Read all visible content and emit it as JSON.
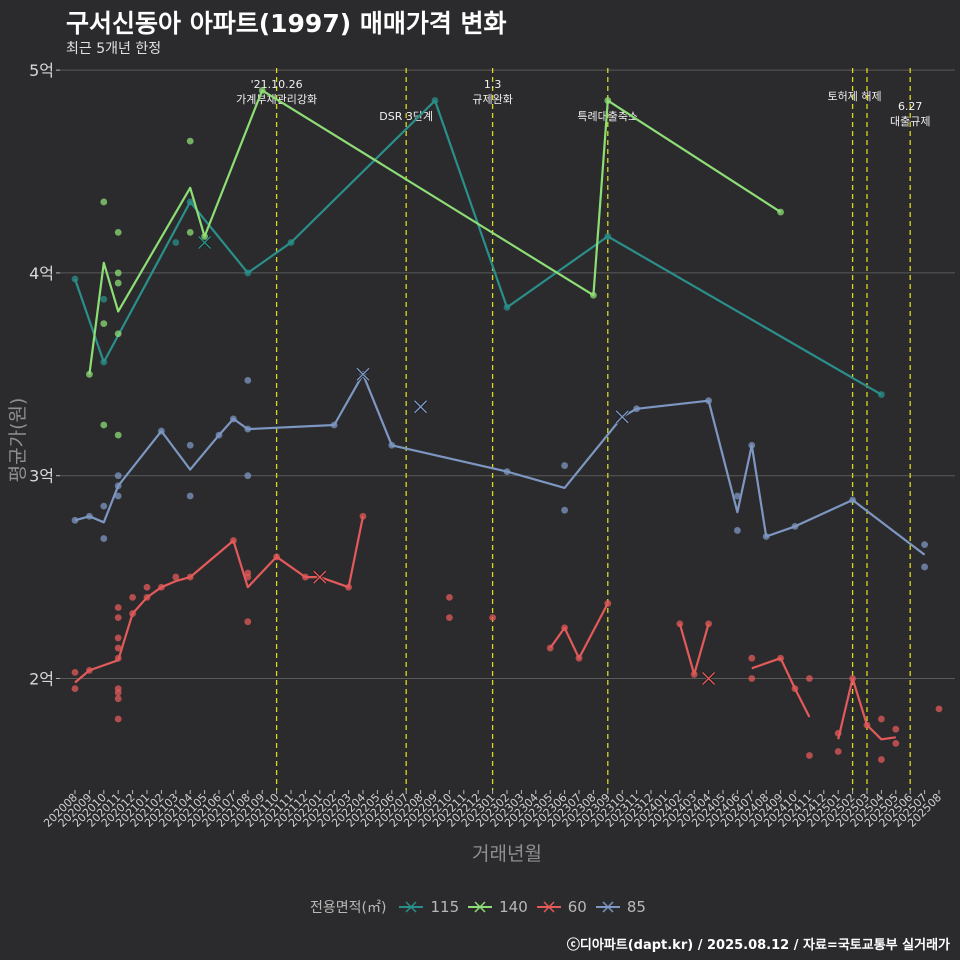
{
  "title": "구서신동아 아파트(1997) 매매가격 변화",
  "subtitle": "최근 5개년 한정",
  "caption": "ⓒ디아파트(dapt.kr) / 2025.08.12 / 자료=국토교통부 실거래가",
  "legend_title": "전용면적(㎡)",
  "colors": {
    "115": "#2a8f8a",
    "140": "#8ede76",
    "60": "#e35a5a",
    "85": "#7d97c2",
    "vline": "#d8d820",
    "grid": "#5a5a5a"
  },
  "chart_data": {
    "type": "line",
    "xlabel": "거래년월",
    "ylabel": "평균가(원)",
    "ylim": [
      1.45,
      5.05
    ],
    "yticks": [
      {
        "v": 2,
        "label": "2억"
      },
      {
        "v": 3,
        "label": "3억"
      },
      {
        "v": 4,
        "label": "4억"
      },
      {
        "v": 5,
        "label": "5억"
      }
    ],
    "x": [
      "202008",
      "202009",
      "202010",
      "202011",
      "202012",
      "202101",
      "202102",
      "202103",
      "202104",
      "202105",
      "202106",
      "202107",
      "202108",
      "202109",
      "202110",
      "202111",
      "202112",
      "202201",
      "202202",
      "202203",
      "202204",
      "202205",
      "202206",
      "202207",
      "202208",
      "202209",
      "202210",
      "202211",
      "202212",
      "202301",
      "202302",
      "202303",
      "202304",
      "202305",
      "202306",
      "202307",
      "202308",
      "202309",
      "202310",
      "202311",
      "202312",
      "202401",
      "202402",
      "202403",
      "202404",
      "202405",
      "202406",
      "202407",
      "202408",
      "202409",
      "202410",
      "202411",
      "202412",
      "202501",
      "202502",
      "202503",
      "202504",
      "202505",
      "202506",
      "202507",
      "202508"
    ],
    "annotations": [
      {
        "x": "202110",
        "label": "'21.10.26\n가계부채관리강화"
      },
      {
        "x": "202207",
        "label": "DSR 3단계"
      },
      {
        "x": "202301",
        "label": "1.3\n규제완화"
      },
      {
        "x": "202309",
        "label": "특례대출축소"
      },
      {
        "x": "202502",
        "label": "토허제 해제"
      },
      {
        "x": "202503",
        "label": ""
      },
      {
        "x": "202506",
        "label": "6.27\n대출규제"
      }
    ],
    "series": [
      {
        "name": "115",
        "line": [
          [
            "202008",
            3.97
          ],
          [
            "202010",
            3.56
          ],
          [
            "202104",
            4.35
          ],
          [
            "202108",
            4.0
          ],
          [
            "202111",
            4.15
          ],
          [
            "202209",
            4.85
          ],
          [
            "202302",
            3.83
          ],
          [
            "202309",
            4.18
          ],
          [
            "202504",
            3.4
          ]
        ],
        "points": [
          [
            "202008",
            3.97
          ],
          [
            "202010",
            3.87
          ],
          [
            "202010",
            3.56
          ],
          [
            "202103",
            4.15
          ],
          [
            "202104",
            4.35
          ],
          [
            "202108",
            4.0
          ],
          [
            "202111",
            4.15
          ],
          [
            "202209",
            4.85
          ],
          [
            "202302",
            3.83
          ],
          [
            "202309",
            4.18
          ],
          [
            "202504",
            3.4
          ]
        ],
        "x_marks": [
          [
            "202105",
            4.15
          ]
        ]
      },
      {
        "name": "140",
        "line": [
          [
            "202009",
            3.5
          ],
          [
            "202010",
            4.05
          ],
          [
            "202011",
            3.81
          ],
          [
            "202104",
            4.42
          ],
          [
            "202105",
            4.18
          ],
          [
            "202109",
            4.9
          ],
          [
            "202308",
            3.89
          ],
          [
            "202309",
            4.85
          ],
          [
            "202409",
            4.3
          ]
        ],
        "points": [
          [
            "202009",
            3.5
          ],
          [
            "202010",
            4.35
          ],
          [
            "202010",
            3.75
          ],
          [
            "202011",
            4.2
          ],
          [
            "202011",
            4.0
          ],
          [
            "202011",
            3.95
          ],
          [
            "202011",
            3.7
          ],
          [
            "202010",
            3.25
          ],
          [
            "202011",
            3.2
          ],
          [
            "202104",
            4.65
          ],
          [
            "202104",
            4.2
          ],
          [
            "202105",
            4.18
          ],
          [
            "202109",
            4.9
          ],
          [
            "202308",
            3.89
          ],
          [
            "202309",
            4.85
          ],
          [
            "202409",
            4.3
          ]
        ],
        "x_marks": []
      },
      {
        "name": "60",
        "line_segments": [
          [
            [
              "202008",
              1.98
            ],
            [
              "202009",
              2.04
            ],
            [
              "202011",
              2.09
            ],
            [
              "202012",
              2.32
            ],
            [
              "202101",
              2.4
            ],
            [
              "202102",
              2.45
            ],
            [
              "202103",
              2.48
            ],
            [
              "202104",
              2.5
            ],
            [
              "202107",
              2.68
            ],
            [
              "202108",
              2.45
            ],
            [
              "202110",
              2.6
            ],
            [
              "202112",
              2.5
            ],
            [
              "202201",
              2.5
            ],
            [
              "202203",
              2.45
            ],
            [
              "202204",
              2.8
            ]
          ],
          [
            [
              "202305",
              2.15
            ],
            [
              "202306",
              2.25
            ],
            [
              "202307",
              2.1
            ],
            [
              "202309",
              2.37
            ]
          ],
          [
            [
              "202402",
              2.27
            ],
            [
              "202403",
              2.02
            ],
            [
              "202404",
              2.27
            ]
          ],
          [
            [
              "202407",
              2.05
            ],
            [
              "202409",
              2.1
            ],
            [
              "202410",
              1.95
            ],
            [
              "202411",
              1.81
            ]
          ],
          [
            [
              "202501",
              1.7
            ],
            [
              "202502",
              2.0
            ],
            [
              "202503",
              1.77
            ],
            [
              "202504",
              1.7
            ],
            [
              "202505",
              1.71
            ]
          ]
        ],
        "points": [
          [
            "202008",
            2.03
          ],
          [
            "202008",
            1.95
          ],
          [
            "202009",
            2.04
          ],
          [
            "202011",
            2.35
          ],
          [
            "202011",
            2.3
          ],
          [
            "202011",
            2.2
          ],
          [
            "202011",
            2.15
          ],
          [
            "202011",
            2.1
          ],
          [
            "202011",
            1.95
          ],
          [
            "202011",
            1.93
          ],
          [
            "202011",
            1.9
          ],
          [
            "202011",
            1.8
          ],
          [
            "202012",
            2.4
          ],
          [
            "202012",
            2.32
          ],
          [
            "202101",
            2.45
          ],
          [
            "202101",
            2.4
          ],
          [
            "202102",
            2.45
          ],
          [
            "202103",
            2.5
          ],
          [
            "202104",
            2.5
          ],
          [
            "202107",
            2.68
          ],
          [
            "202108",
            2.52
          ],
          [
            "202108",
            2.5
          ],
          [
            "202108",
            2.28
          ],
          [
            "202110",
            2.6
          ],
          [
            "202112",
            2.5
          ],
          [
            "202203",
            2.45
          ],
          [
            "202204",
            2.8
          ],
          [
            "202210",
            2.4
          ],
          [
            "202210",
            2.3
          ],
          [
            "202301",
            2.3
          ],
          [
            "202305",
            2.15
          ],
          [
            "202306",
            2.25
          ],
          [
            "202307",
            2.1
          ],
          [
            "202309",
            2.37
          ],
          [
            "202402",
            2.27
          ],
          [
            "202403",
            2.02
          ],
          [
            "202404",
            2.27
          ],
          [
            "202407",
            2.1
          ],
          [
            "202407",
            2.0
          ],
          [
            "202409",
            2.1
          ],
          [
            "202410",
            1.95
          ],
          [
            "202411",
            1.62
          ],
          [
            "202411",
            2.0
          ],
          [
            "202501",
            1.73
          ],
          [
            "202501",
            1.64
          ],
          [
            "202502",
            2.0
          ],
          [
            "202503",
            1.77
          ],
          [
            "202504",
            1.8
          ],
          [
            "202504",
            1.6
          ],
          [
            "202505",
            1.75
          ],
          [
            "202505",
            1.68
          ],
          [
            "202508",
            1.85
          ]
        ],
        "x_marks": [
          [
            "202201",
            2.5
          ],
          [
            "202404",
            2.0
          ]
        ]
      },
      {
        "name": "85",
        "line": [
          [
            "202008",
            2.78
          ],
          [
            "202009",
            2.8
          ],
          [
            "202010",
            2.77
          ],
          [
            "202011",
            2.95
          ],
          [
            "202102",
            3.22
          ],
          [
            "202104",
            3.03
          ],
          [
            "202106",
            3.2
          ],
          [
            "202107",
            3.28
          ],
          [
            "202108",
            3.23
          ],
          [
            "202202",
            3.25
          ],
          [
            "202204",
            3.5
          ],
          [
            "202206",
            3.15
          ],
          [
            "202302",
            3.02
          ],
          [
            "202306",
            2.94
          ],
          [
            "202310",
            3.29
          ],
          [
            "202311",
            3.33
          ],
          [
            "202404",
            3.37
          ],
          [
            "202406",
            2.82
          ],
          [
            "202407",
            3.15
          ],
          [
            "202408",
            2.7
          ],
          [
            "202410",
            2.75
          ],
          [
            "202502",
            2.88
          ],
          [
            "202507",
            2.61
          ]
        ],
        "points": [
          [
            "202008",
            2.78
          ],
          [
            "202009",
            2.8
          ],
          [
            "202010",
            2.85
          ],
          [
            "202010",
            2.69
          ],
          [
            "202011",
            3.0
          ],
          [
            "202011",
            2.95
          ],
          [
            "202011",
            2.9
          ],
          [
            "202102",
            3.22
          ],
          [
            "202104",
            3.15
          ],
          [
            "202104",
            2.9
          ],
          [
            "202106",
            3.2
          ],
          [
            "202107",
            3.28
          ],
          [
            "202108",
            3.47
          ],
          [
            "202108",
            3.23
          ],
          [
            "202108",
            3.0
          ],
          [
            "202202",
            3.25
          ],
          [
            "202204",
            3.5
          ],
          [
            "202206",
            3.15
          ],
          [
            "202302",
            3.02
          ],
          [
            "202306",
            3.05
          ],
          [
            "202306",
            2.83
          ],
          [
            "202311",
            3.33
          ],
          [
            "202404",
            3.37
          ],
          [
            "202406",
            2.9
          ],
          [
            "202406",
            2.73
          ],
          [
            "202407",
            3.15
          ],
          [
            "202408",
            2.7
          ],
          [
            "202410",
            2.75
          ],
          [
            "202502",
            2.88
          ],
          [
            "202507",
            2.66
          ],
          [
            "202507",
            2.55
          ]
        ],
        "x_marks": [
          [
            "202204",
            3.5
          ],
          [
            "202208",
            3.34
          ],
          [
            "202310",
            3.29
          ]
        ]
      }
    ]
  }
}
